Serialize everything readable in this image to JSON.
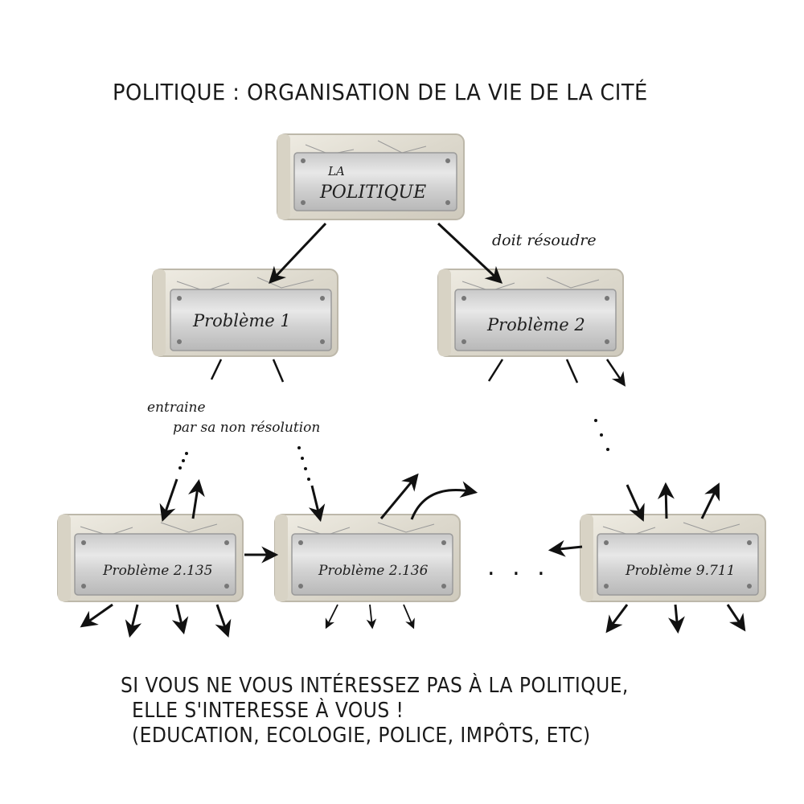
{
  "title": "POLITIQUE : ORGANISATION DE LA VIE DE LA CITÉ",
  "nodes": {
    "root": {
      "line1": "LA",
      "line2": "POLITIQUE"
    },
    "p1": "Problème 1",
    "p2": "Problème 2",
    "p2135": "Problème 2.135",
    "p2136": "Problème 2.136",
    "p9711": "Problème 9.711"
  },
  "annotations": {
    "doit": "doit résoudre",
    "entraine_1": "entraine",
    "entraine_2": "par sa non résolution",
    "ellipsis": ". . ."
  },
  "footer": {
    "line1": "SI VOUS NE VOUS INTÉRESSEZ PAS À LA POLITIQUE,",
    "line2": "ELLE S'INTERESSE À VOUS !",
    "line3": "(EDUCATION, ECOLOGIE, POLICE, IMPÔTS, ETC)"
  }
}
